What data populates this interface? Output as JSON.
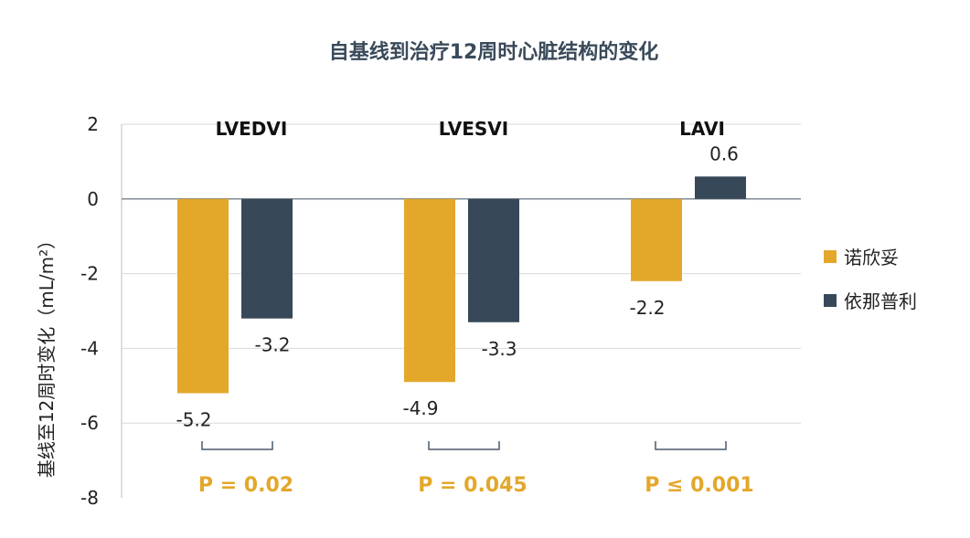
{
  "chart_data": {
    "type": "bar",
    "title": "自基线到治疗12周时心脏结构的变化",
    "ylabel": "基线至12周时变化（mL/m²）",
    "ylim": [
      -8,
      2
    ],
    "yticks": [
      2,
      0,
      -2,
      -4,
      -6,
      -8
    ],
    "grid": true,
    "legend_position": "right",
    "categories": [
      "LVEDVI",
      "LVESVI",
      "LAVI"
    ],
    "series": [
      {
        "name": "诺欣妥",
        "color": "#E3A72A",
        "values": [
          -5.2,
          -4.9,
          -2.2
        ]
      },
      {
        "name": "依那普利",
        "color": "#374858",
        "values": [
          -3.2,
          -3.3,
          0.6
        ]
      }
    ],
    "data_labels": [
      [
        "-5.2",
        "-4.9",
        "-2.2"
      ],
      [
        "-3.2",
        "-3.3",
        "0.6"
      ]
    ],
    "p_values": [
      "P = 0.02",
      "P = 0.045",
      "P ≤ 0.001"
    ],
    "p_color": "#E3A72A"
  }
}
